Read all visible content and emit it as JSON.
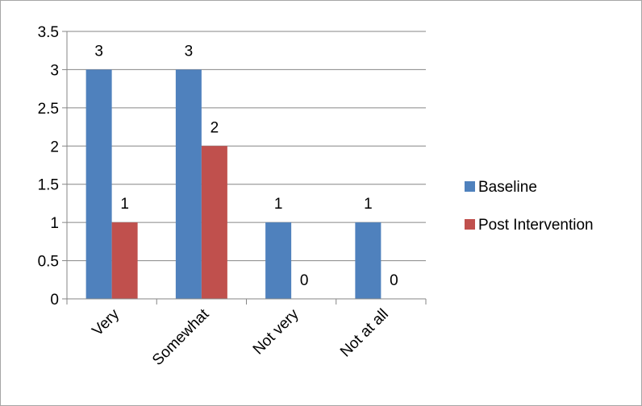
{
  "chart_data": {
    "type": "bar",
    "categories": [
      "Very",
      "Somewhat",
      "Not very",
      "Not at all"
    ],
    "series": [
      {
        "name": "Baseline",
        "values": [
          3,
          3,
          1,
          1
        ],
        "color": "#4f81bd"
      },
      {
        "name": "Post Intervention",
        "values": [
          1,
          2,
          0,
          0
        ],
        "color": "#c0504d"
      }
    ],
    "y_ticks": [
      "0",
      "0.5",
      "1",
      "1.5",
      "2",
      "2.5",
      "3",
      "3.5"
    ],
    "ylim": [
      0,
      3.5
    ],
    "grid": true,
    "legend_position": "right",
    "data_labels": true,
    "gridline_color": "#868686"
  }
}
